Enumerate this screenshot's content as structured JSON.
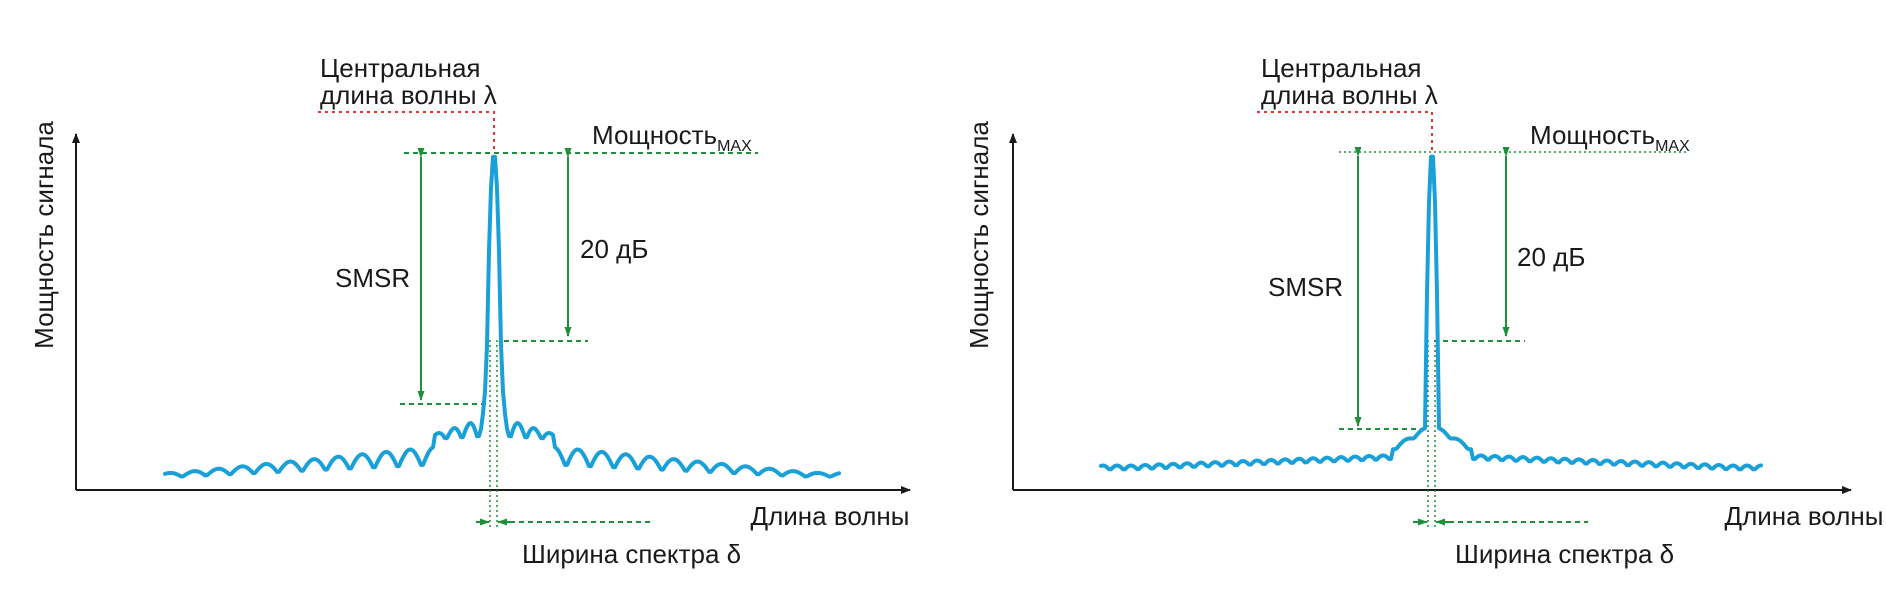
{
  "colors": {
    "spectrum": "#1aa0d8",
    "dimension_lines": "#1f8f3a",
    "center_line": "#e3342f",
    "axes": "#1a1a1a"
  },
  "left_diagram": {
    "y_axis_label": "Мощность сигнала",
    "x_axis_label": "Длина волны",
    "center_label_line1": "Центральная",
    "center_label_line2": "длина волны λ",
    "power_max_label": "Мощность",
    "power_max_subscript": "MAX",
    "smsr_label": "SMSR",
    "db_label": "20 дБ",
    "width_label": "Ширина спектра δ"
  },
  "right_diagram": {
    "y_axis_label": "Мощность сигнала",
    "x_axis_label": "Длина волны",
    "center_label_line1": "Центральная",
    "center_label_line2": "длина волны λ",
    "power_max_label": "Мощность",
    "power_max_subscript": "MAX",
    "smsr_label": "SMSR",
    "db_label": "20 дБ",
    "width_label": "Ширина спектра δ"
  }
}
